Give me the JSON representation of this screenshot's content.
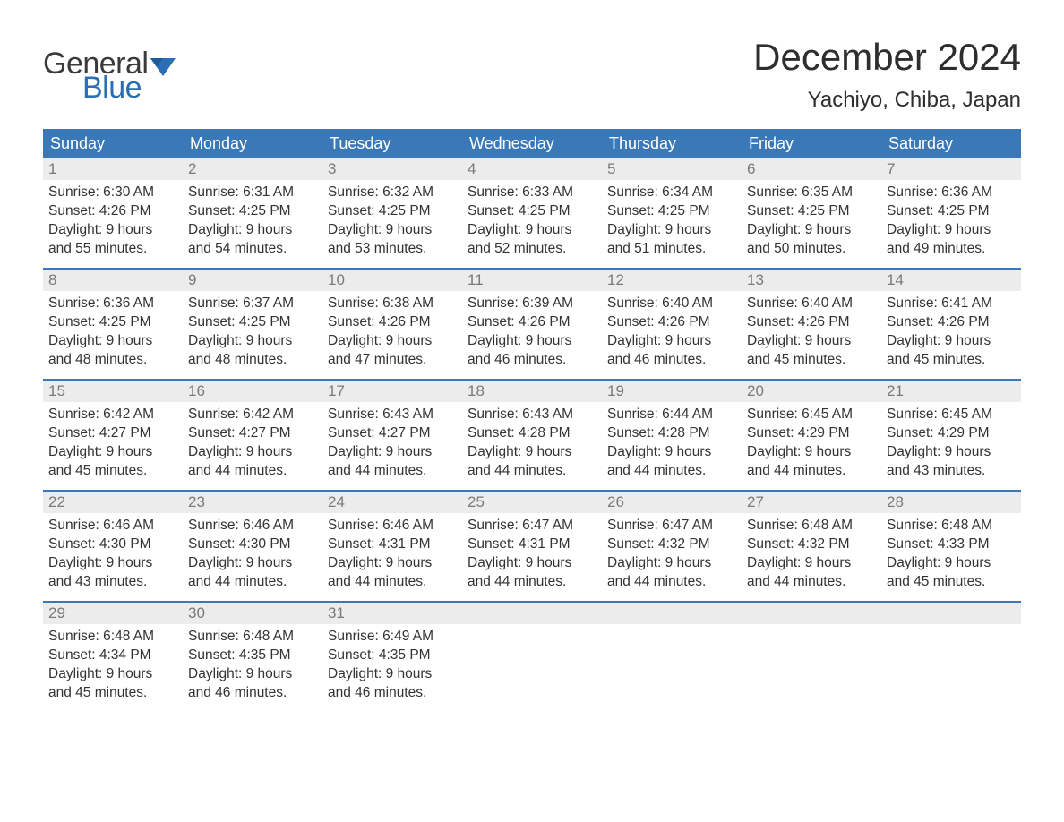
{
  "logo": {
    "text_general": "General",
    "text_blue": "Blue",
    "flag_color": "#2a6fb5"
  },
  "header": {
    "month_title": "December 2024",
    "location": "Yachiyo, Chiba, Japan"
  },
  "colors": {
    "header_bar": "#3b78b8",
    "week_divider": "#3b78b8",
    "daynum_bg": "#ececec",
    "daynum_text": "#7a7a7a",
    "body_text": "#333333",
    "title_text": "#2e2e2e",
    "background": "#ffffff"
  },
  "day_names": [
    "Sunday",
    "Monday",
    "Tuesday",
    "Wednesday",
    "Thursday",
    "Friday",
    "Saturday"
  ],
  "labels": {
    "sunrise": "Sunrise:",
    "sunset": "Sunset:",
    "daylight_prefix": "Daylight:",
    "hours_word": "hours",
    "and_word": "and",
    "minutes_word": "minutes."
  },
  "weeks": [
    [
      {
        "day": 1,
        "sunrise": "6:30 AM",
        "sunset": "4:26 PM",
        "dl_h": 9,
        "dl_m": 55
      },
      {
        "day": 2,
        "sunrise": "6:31 AM",
        "sunset": "4:25 PM",
        "dl_h": 9,
        "dl_m": 54
      },
      {
        "day": 3,
        "sunrise": "6:32 AM",
        "sunset": "4:25 PM",
        "dl_h": 9,
        "dl_m": 53
      },
      {
        "day": 4,
        "sunrise": "6:33 AM",
        "sunset": "4:25 PM",
        "dl_h": 9,
        "dl_m": 52
      },
      {
        "day": 5,
        "sunrise": "6:34 AM",
        "sunset": "4:25 PM",
        "dl_h": 9,
        "dl_m": 51
      },
      {
        "day": 6,
        "sunrise": "6:35 AM",
        "sunset": "4:25 PM",
        "dl_h": 9,
        "dl_m": 50
      },
      {
        "day": 7,
        "sunrise": "6:36 AM",
        "sunset": "4:25 PM",
        "dl_h": 9,
        "dl_m": 49
      }
    ],
    [
      {
        "day": 8,
        "sunrise": "6:36 AM",
        "sunset": "4:25 PM",
        "dl_h": 9,
        "dl_m": 48
      },
      {
        "day": 9,
        "sunrise": "6:37 AM",
        "sunset": "4:25 PM",
        "dl_h": 9,
        "dl_m": 48
      },
      {
        "day": 10,
        "sunrise": "6:38 AM",
        "sunset": "4:26 PM",
        "dl_h": 9,
        "dl_m": 47
      },
      {
        "day": 11,
        "sunrise": "6:39 AM",
        "sunset": "4:26 PM",
        "dl_h": 9,
        "dl_m": 46
      },
      {
        "day": 12,
        "sunrise": "6:40 AM",
        "sunset": "4:26 PM",
        "dl_h": 9,
        "dl_m": 46
      },
      {
        "day": 13,
        "sunrise": "6:40 AM",
        "sunset": "4:26 PM",
        "dl_h": 9,
        "dl_m": 45
      },
      {
        "day": 14,
        "sunrise": "6:41 AM",
        "sunset": "4:26 PM",
        "dl_h": 9,
        "dl_m": 45
      }
    ],
    [
      {
        "day": 15,
        "sunrise": "6:42 AM",
        "sunset": "4:27 PM",
        "dl_h": 9,
        "dl_m": 45
      },
      {
        "day": 16,
        "sunrise": "6:42 AM",
        "sunset": "4:27 PM",
        "dl_h": 9,
        "dl_m": 44
      },
      {
        "day": 17,
        "sunrise": "6:43 AM",
        "sunset": "4:27 PM",
        "dl_h": 9,
        "dl_m": 44
      },
      {
        "day": 18,
        "sunrise": "6:43 AM",
        "sunset": "4:28 PM",
        "dl_h": 9,
        "dl_m": 44
      },
      {
        "day": 19,
        "sunrise": "6:44 AM",
        "sunset": "4:28 PM",
        "dl_h": 9,
        "dl_m": 44
      },
      {
        "day": 20,
        "sunrise": "6:45 AM",
        "sunset": "4:29 PM",
        "dl_h": 9,
        "dl_m": 44
      },
      {
        "day": 21,
        "sunrise": "6:45 AM",
        "sunset": "4:29 PM",
        "dl_h": 9,
        "dl_m": 43
      }
    ],
    [
      {
        "day": 22,
        "sunrise": "6:46 AM",
        "sunset": "4:30 PM",
        "dl_h": 9,
        "dl_m": 43
      },
      {
        "day": 23,
        "sunrise": "6:46 AM",
        "sunset": "4:30 PM",
        "dl_h": 9,
        "dl_m": 44
      },
      {
        "day": 24,
        "sunrise": "6:46 AM",
        "sunset": "4:31 PM",
        "dl_h": 9,
        "dl_m": 44
      },
      {
        "day": 25,
        "sunrise": "6:47 AM",
        "sunset": "4:31 PM",
        "dl_h": 9,
        "dl_m": 44
      },
      {
        "day": 26,
        "sunrise": "6:47 AM",
        "sunset": "4:32 PM",
        "dl_h": 9,
        "dl_m": 44
      },
      {
        "day": 27,
        "sunrise": "6:48 AM",
        "sunset": "4:32 PM",
        "dl_h": 9,
        "dl_m": 44
      },
      {
        "day": 28,
        "sunrise": "6:48 AM",
        "sunset": "4:33 PM",
        "dl_h": 9,
        "dl_m": 45
      }
    ],
    [
      {
        "day": 29,
        "sunrise": "6:48 AM",
        "sunset": "4:34 PM",
        "dl_h": 9,
        "dl_m": 45
      },
      {
        "day": 30,
        "sunrise": "6:48 AM",
        "sunset": "4:35 PM",
        "dl_h": 9,
        "dl_m": 46
      },
      {
        "day": 31,
        "sunrise": "6:49 AM",
        "sunset": "4:35 PM",
        "dl_h": 9,
        "dl_m": 46
      },
      {
        "empty": true
      },
      {
        "empty": true
      },
      {
        "empty": true
      },
      {
        "empty": true
      }
    ]
  ]
}
